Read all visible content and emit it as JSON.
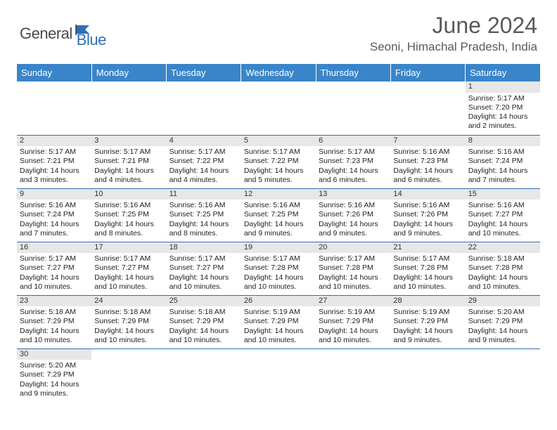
{
  "logo": {
    "text_dark": "General",
    "text_blue": "Blue",
    "flag_fill": "#2d6fb8",
    "flag_stroke": "#333333"
  },
  "header": {
    "month_title": "June 2024",
    "location": "Seoni, Himachal Pradesh, India"
  },
  "colors": {
    "header_bg": "#3a85c9",
    "header_text": "#ffffff",
    "daynum_bg": "#e7e7e7",
    "border": "#2d6fb8",
    "text": "#222222"
  },
  "weekdays": [
    "Sunday",
    "Monday",
    "Tuesday",
    "Wednesday",
    "Thursday",
    "Friday",
    "Saturday"
  ],
  "weeks": [
    [
      null,
      null,
      null,
      null,
      null,
      null,
      {
        "d": "1",
        "sr": "5:17 AM",
        "ss": "7:20 PM",
        "dl": "14 hours and 2 minutes."
      }
    ],
    [
      {
        "d": "2",
        "sr": "5:17 AM",
        "ss": "7:21 PM",
        "dl": "14 hours and 3 minutes."
      },
      {
        "d": "3",
        "sr": "5:17 AM",
        "ss": "7:21 PM",
        "dl": "14 hours and 4 minutes."
      },
      {
        "d": "4",
        "sr": "5:17 AM",
        "ss": "7:22 PM",
        "dl": "14 hours and 4 minutes."
      },
      {
        "d": "5",
        "sr": "5:17 AM",
        "ss": "7:22 PM",
        "dl": "14 hours and 5 minutes."
      },
      {
        "d": "6",
        "sr": "5:17 AM",
        "ss": "7:23 PM",
        "dl": "14 hours and 6 minutes."
      },
      {
        "d": "7",
        "sr": "5:16 AM",
        "ss": "7:23 PM",
        "dl": "14 hours and 6 minutes."
      },
      {
        "d": "8",
        "sr": "5:16 AM",
        "ss": "7:24 PM",
        "dl": "14 hours and 7 minutes."
      }
    ],
    [
      {
        "d": "9",
        "sr": "5:16 AM",
        "ss": "7:24 PM",
        "dl": "14 hours and 7 minutes."
      },
      {
        "d": "10",
        "sr": "5:16 AM",
        "ss": "7:25 PM",
        "dl": "14 hours and 8 minutes."
      },
      {
        "d": "11",
        "sr": "5:16 AM",
        "ss": "7:25 PM",
        "dl": "14 hours and 8 minutes."
      },
      {
        "d": "12",
        "sr": "5:16 AM",
        "ss": "7:25 PM",
        "dl": "14 hours and 9 minutes."
      },
      {
        "d": "13",
        "sr": "5:16 AM",
        "ss": "7:26 PM",
        "dl": "14 hours and 9 minutes."
      },
      {
        "d": "14",
        "sr": "5:16 AM",
        "ss": "7:26 PM",
        "dl": "14 hours and 9 minutes."
      },
      {
        "d": "15",
        "sr": "5:16 AM",
        "ss": "7:27 PM",
        "dl": "14 hours and 10 minutes."
      }
    ],
    [
      {
        "d": "16",
        "sr": "5:17 AM",
        "ss": "7:27 PM",
        "dl": "14 hours and 10 minutes."
      },
      {
        "d": "17",
        "sr": "5:17 AM",
        "ss": "7:27 PM",
        "dl": "14 hours and 10 minutes."
      },
      {
        "d": "18",
        "sr": "5:17 AM",
        "ss": "7:27 PM",
        "dl": "14 hours and 10 minutes."
      },
      {
        "d": "19",
        "sr": "5:17 AM",
        "ss": "7:28 PM",
        "dl": "14 hours and 10 minutes."
      },
      {
        "d": "20",
        "sr": "5:17 AM",
        "ss": "7:28 PM",
        "dl": "14 hours and 10 minutes."
      },
      {
        "d": "21",
        "sr": "5:17 AM",
        "ss": "7:28 PM",
        "dl": "14 hours and 10 minutes."
      },
      {
        "d": "22",
        "sr": "5:18 AM",
        "ss": "7:28 PM",
        "dl": "14 hours and 10 minutes."
      }
    ],
    [
      {
        "d": "23",
        "sr": "5:18 AM",
        "ss": "7:29 PM",
        "dl": "14 hours and 10 minutes."
      },
      {
        "d": "24",
        "sr": "5:18 AM",
        "ss": "7:29 PM",
        "dl": "14 hours and 10 minutes."
      },
      {
        "d": "25",
        "sr": "5:18 AM",
        "ss": "7:29 PM",
        "dl": "14 hours and 10 minutes."
      },
      {
        "d": "26",
        "sr": "5:19 AM",
        "ss": "7:29 PM",
        "dl": "14 hours and 10 minutes."
      },
      {
        "d": "27",
        "sr": "5:19 AM",
        "ss": "7:29 PM",
        "dl": "14 hours and 10 minutes."
      },
      {
        "d": "28",
        "sr": "5:19 AM",
        "ss": "7:29 PM",
        "dl": "14 hours and 9 minutes."
      },
      {
        "d": "29",
        "sr": "5:20 AM",
        "ss": "7:29 PM",
        "dl": "14 hours and 9 minutes."
      }
    ],
    [
      {
        "d": "30",
        "sr": "5:20 AM",
        "ss": "7:29 PM",
        "dl": "14 hours and 9 minutes."
      },
      null,
      null,
      null,
      null,
      null,
      null
    ]
  ],
  "labels": {
    "sunrise": "Sunrise: ",
    "sunset": "Sunset: ",
    "daylight": "Daylight: "
  }
}
